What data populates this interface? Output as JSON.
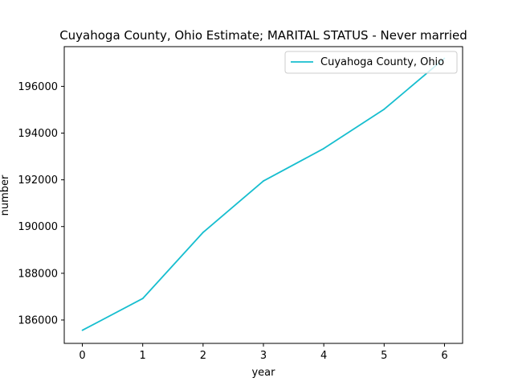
{
  "chart_data": {
    "type": "line",
    "title": "Cuyahoga County, Ohio Estimate; MARITAL STATUS - Never married",
    "xlabel": "year",
    "ylabel": "number",
    "x": [
      0,
      1,
      2,
      3,
      4,
      5,
      6
    ],
    "xticks": [
      "0",
      "1",
      "2",
      "3",
      "4",
      "5",
      "6"
    ],
    "yticks": [
      "186000",
      "188000",
      "190000",
      "192000",
      "194000",
      "196000"
    ],
    "series": [
      {
        "name": "Cuyahoga County, Ohio",
        "color": "#17becf",
        "values": [
          185560,
          186920,
          189750,
          191950,
          193340,
          195020,
          197200
        ]
      }
    ],
    "xlim": [
      -0.3,
      6.3
    ],
    "ylim": [
      185000,
      197700
    ],
    "grid": false,
    "legend_position": "top-right"
  }
}
